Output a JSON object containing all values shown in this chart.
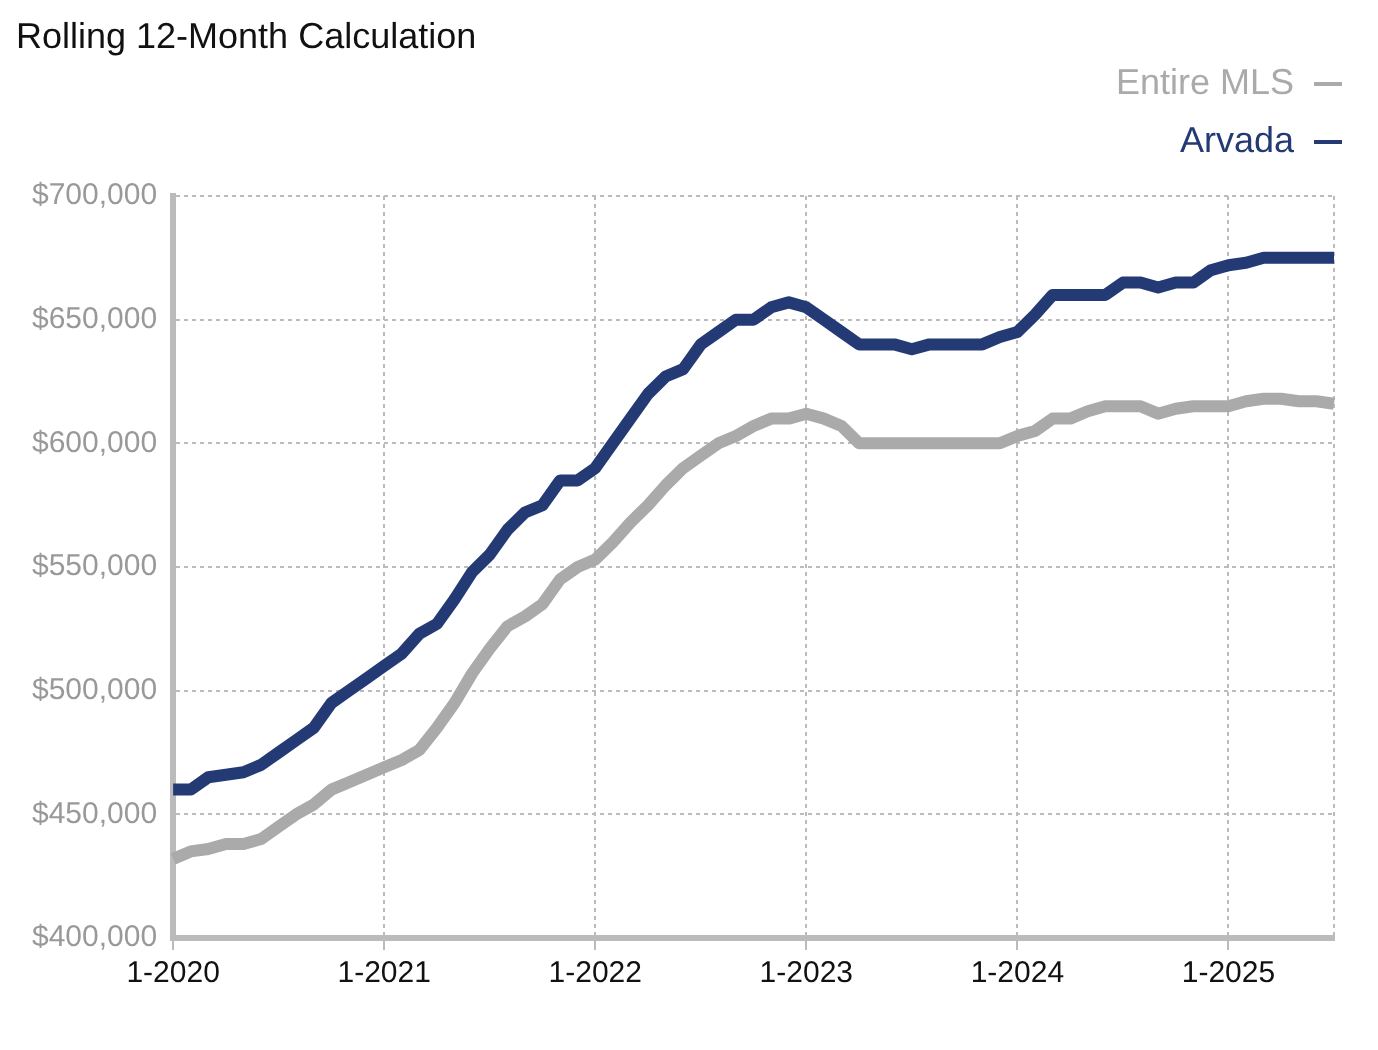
{
  "chart_data": {
    "type": "line",
    "title": "Rolling 12-Month Calculation",
    "categories": [
      "1-2020",
      null,
      null,
      null,
      null,
      null,
      null,
      null,
      null,
      null,
      null,
      null,
      "1-2021",
      null,
      null,
      null,
      null,
      null,
      null,
      null,
      null,
      null,
      null,
      null,
      "1-2022",
      null,
      null,
      null,
      null,
      null,
      null,
      null,
      null,
      null,
      null,
      null,
      "1-2023",
      null,
      null,
      null,
      null,
      null,
      null,
      null,
      null,
      null,
      null,
      null,
      "1-2024",
      null,
      null,
      null,
      null,
      null,
      null,
      null,
      null,
      null,
      null,
      null,
      "1-2025",
      null,
      null,
      null,
      null,
      null,
      null
    ],
    "series": [
      {
        "name": "Entire MLS",
        "color": "#aaaaaa",
        "values": [
          432000,
          435000,
          436000,
          438000,
          438000,
          440000,
          445000,
          450000,
          454000,
          460000,
          463000,
          466000,
          469000,
          472000,
          476000,
          485000,
          495000,
          507000,
          517000,
          526000,
          530000,
          535000,
          545000,
          550000,
          553000,
          560000,
          568000,
          575000,
          583000,
          590000,
          595000,
          600000,
          603000,
          607000,
          610000,
          610000,
          612000,
          610000,
          607000,
          600000,
          600000,
          600000,
          600000,
          600000,
          600000,
          600000,
          600000,
          600000,
          603000,
          605000,
          610000,
          610000,
          613000,
          615000,
          615000,
          615000,
          612000,
          614000,
          615000,
          615000,
          615000,
          617000,
          618000,
          618000,
          617000,
          617000,
          616000
        ]
      },
      {
        "name": "Arvada",
        "color": "#233a74",
        "values": [
          460000,
          460000,
          465000,
          466000,
          467000,
          470000,
          475000,
          480000,
          485000,
          495000,
          500000,
          505000,
          510000,
          515000,
          523000,
          527000,
          537000,
          548000,
          555000,
          565000,
          572000,
          575000,
          585000,
          585000,
          590000,
          600000,
          610000,
          620000,
          627000,
          630000,
          640000,
          645000,
          650000,
          650000,
          655000,
          657000,
          655000,
          650000,
          645000,
          640000,
          640000,
          640000,
          638000,
          640000,
          640000,
          640000,
          640000,
          643000,
          645000,
          652000,
          660000,
          660000,
          660000,
          660000,
          665000,
          665000,
          663000,
          665000,
          665000,
          670000,
          672000,
          673000,
          675000,
          675000,
          675000,
          675000,
          675000
        ]
      }
    ],
    "ylim": [
      400000,
      700000
    ],
    "yticks": [
      {
        "value": 400000,
        "label": "$400,000"
      },
      {
        "value": 450000,
        "label": "$450,000"
      },
      {
        "value": 500000,
        "label": "$500,000"
      },
      {
        "value": 550000,
        "label": "$550,000"
      },
      {
        "value": 600000,
        "label": "$600,000"
      },
      {
        "value": 650000,
        "label": "$650,000"
      },
      {
        "value": 700000,
        "label": "$700,000"
      }
    ],
    "grid": true,
    "legend": "top right",
    "marker": "none",
    "line_style": "solid"
  }
}
